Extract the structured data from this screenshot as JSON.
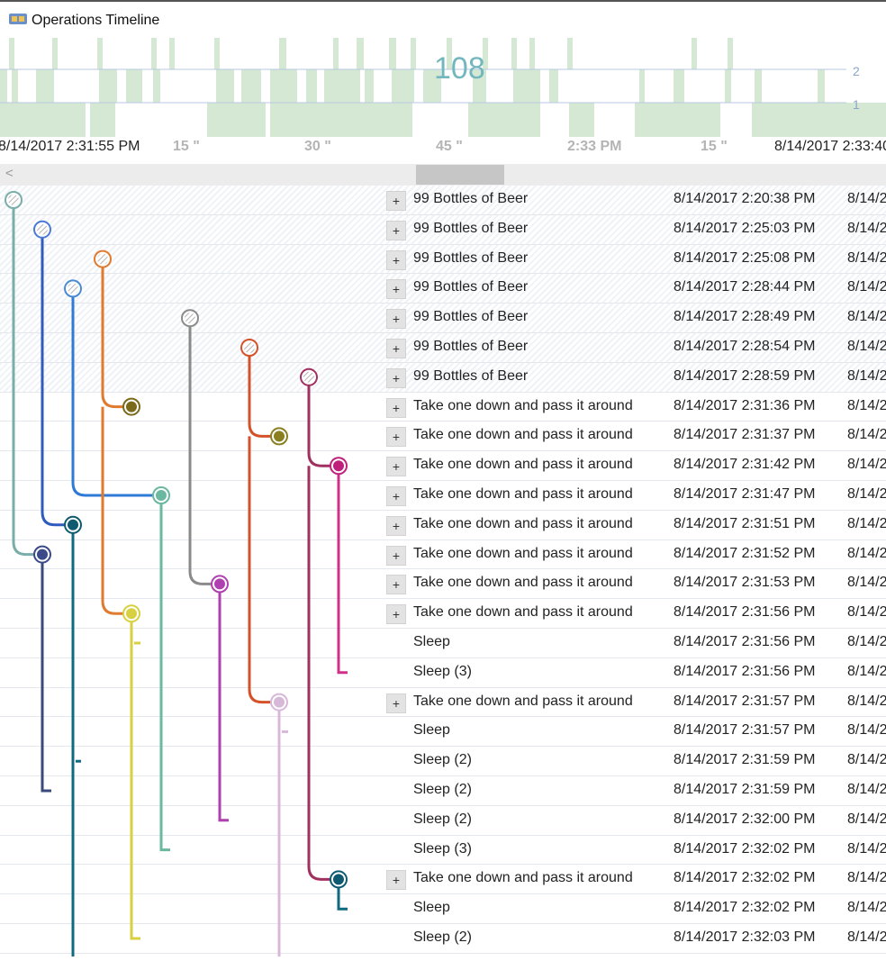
{
  "window": {
    "title": "Operations Timeline",
    "icon": "operations-timeline-icon"
  },
  "overview": {
    "count": "108",
    "level_marker_top": "2",
    "level_marker_bottom": "1"
  },
  "time_axis": {
    "ticks": [
      {
        "label": "8/14/2017 2:31:55 PM",
        "kind": "major"
      },
      {
        "label": "15 \"",
        "kind": "minor"
      },
      {
        "label": "30 \"",
        "kind": "minor"
      },
      {
        "label": "45 \"",
        "kind": "minor"
      },
      {
        "label": "2:33 PM",
        "kind": "minor"
      },
      {
        "label": "15 \"",
        "kind": "minor"
      },
      {
        "label": "8/14/2017 2:33:40",
        "kind": "major"
      }
    ]
  },
  "scrollbar": {
    "left_arrow": "<"
  },
  "rows": [
    {
      "name": "99 Bottles of Beer",
      "start": "8/14/2017 2:20:38 PM",
      "end": "8/14/2",
      "expandable": true,
      "expand_label": "+"
    },
    {
      "name": "99 Bottles of Beer",
      "start": "8/14/2017 2:25:03 PM",
      "end": "8/14/2",
      "expandable": true,
      "expand_label": "+"
    },
    {
      "name": "99 Bottles of Beer",
      "start": "8/14/2017 2:25:08 PM",
      "end": "8/14/2",
      "expandable": true,
      "expand_label": "+"
    },
    {
      "name": "99 Bottles of Beer",
      "start": "8/14/2017 2:28:44 PM",
      "end": "8/14/2",
      "expandable": true,
      "expand_label": "+"
    },
    {
      "name": "99 Bottles of Beer",
      "start": "8/14/2017 2:28:49 PM",
      "end": "8/14/2",
      "expandable": true,
      "expand_label": "+"
    },
    {
      "name": "99 Bottles of Beer",
      "start": "8/14/2017 2:28:54 PM",
      "end": "8/14/2",
      "expandable": true,
      "expand_label": "+"
    },
    {
      "name": "99 Bottles of Beer",
      "start": "8/14/2017 2:28:59 PM",
      "end": "8/14/2",
      "expandable": true,
      "expand_label": "+"
    },
    {
      "name": "Take one down and pass it around",
      "start": "8/14/2017 2:31:36 PM",
      "end": "8/14/2",
      "expandable": true,
      "expand_label": "+"
    },
    {
      "name": "Take one down and pass it around",
      "start": "8/14/2017 2:31:37 PM",
      "end": "8/14/2",
      "expandable": true,
      "expand_label": "+"
    },
    {
      "name": "Take one down and pass it around",
      "start": "8/14/2017 2:31:42 PM",
      "end": "8/14/2",
      "expandable": true,
      "expand_label": "+"
    },
    {
      "name": "Take one down and pass it around",
      "start": "8/14/2017 2:31:47 PM",
      "end": "8/14/2",
      "expandable": true,
      "expand_label": "+"
    },
    {
      "name": "Take one down and pass it around",
      "start": "8/14/2017 2:31:51 PM",
      "end": "8/14/2",
      "expandable": true,
      "expand_label": "+"
    },
    {
      "name": "Take one down and pass it around",
      "start": "8/14/2017 2:31:52 PM",
      "end": "8/14/2",
      "expandable": true,
      "expand_label": "+"
    },
    {
      "name": "Take one down and pass it around",
      "start": "8/14/2017 2:31:53 PM",
      "end": "8/14/2",
      "expandable": true,
      "expand_label": "+"
    },
    {
      "name": "Take one down and pass it around",
      "start": "8/14/2017 2:31:56 PM",
      "end": "8/14/2",
      "expandable": true,
      "expand_label": "+"
    },
    {
      "name": "Sleep",
      "start": "8/14/2017 2:31:56 PM",
      "end": "8/14/2",
      "expandable": false,
      "expand_label": ""
    },
    {
      "name": "Sleep (3)",
      "start": "8/14/2017 2:31:56 PM",
      "end": "8/14/2",
      "expandable": false,
      "expand_label": ""
    },
    {
      "name": "Take one down and pass it around",
      "start": "8/14/2017 2:31:57 PM",
      "end": "8/14/2",
      "expandable": true,
      "expand_label": "+"
    },
    {
      "name": "Sleep",
      "start": "8/14/2017 2:31:57 PM",
      "end": "8/14/2",
      "expandable": false,
      "expand_label": ""
    },
    {
      "name": "Sleep (2)",
      "start": "8/14/2017 2:31:59 PM",
      "end": "8/14/2",
      "expandable": false,
      "expand_label": ""
    },
    {
      "name": "Sleep (2)",
      "start": "8/14/2017 2:31:59 PM",
      "end": "8/14/2",
      "expandable": false,
      "expand_label": ""
    },
    {
      "name": "Sleep (2)",
      "start": "8/14/2017 2:32:00 PM",
      "end": "8/14/2",
      "expandable": false,
      "expand_label": ""
    },
    {
      "name": "Sleep (3)",
      "start": "8/14/2017 2:32:02 PM",
      "end": "8/14/2",
      "expandable": false,
      "expand_label": ""
    },
    {
      "name": "Take one down and pass it around",
      "start": "8/14/2017 2:32:02 PM",
      "end": "8/14/2",
      "expandable": true,
      "expand_label": "+"
    },
    {
      "name": "Sleep",
      "start": "8/14/2017 2:32:02 PM",
      "end": "8/14/2",
      "expandable": false,
      "expand_label": ""
    },
    {
      "name": "Sleep (2)",
      "start": "8/14/2017 2:32:03 PM",
      "end": "8/14/2",
      "expandable": false,
      "expand_label": ""
    }
  ],
  "colors": {
    "overview_bar": "#d5e8d4",
    "count_text": "#72b7bd",
    "lane_colors": [
      "#6fa8a8",
      "#2f5bbf",
      "#e07a2e",
      "#2f7ad6",
      "#8a8a8a",
      "#d4522a",
      "#a03060"
    ]
  }
}
